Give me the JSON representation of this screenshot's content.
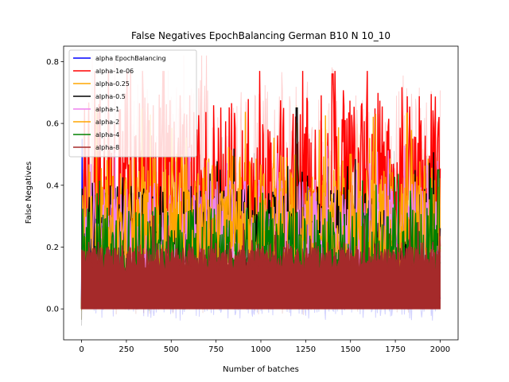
{
  "chart_data": {
    "type": "line",
    "title": "False Negatives EpochBalancing German B10 N 10_10",
    "xlabel": "Number of batches",
    "ylabel": "False Negatives",
    "xlim": [
      -100,
      2100
    ],
    "ylim": [
      -0.1,
      0.85
    ],
    "xticks": [
      0,
      250,
      500,
      750,
      1000,
      1250,
      1500,
      1750,
      2000
    ],
    "yticks": [
      0.0,
      0.2,
      0.4,
      0.6,
      0.8
    ],
    "xtick_labels": [
      "0",
      "250",
      "500",
      "750",
      "1000",
      "1250",
      "1500",
      "1750",
      "2000"
    ],
    "ytick_labels": [
      "0.0",
      "0.2",
      "0.4",
      "0.6",
      "0.8"
    ],
    "legend_position": "top-left",
    "x_range": [
      0,
      2000
    ],
    "series": [
      {
        "name": "alpha EpochBalancing",
        "color": "#0000ff",
        "base": 0.02,
        "amp": 0.05,
        "peak": 0.55,
        "peak_x": 0
      },
      {
        "name": "alpha-1e-06",
        "color": "#ff0000",
        "base": 0.2,
        "amp": 0.5,
        "peak": 0.76,
        "peak_x": 1400
      },
      {
        "name": "alpha-0.25",
        "color": "#ffa500",
        "base": 0.12,
        "amp": 0.38,
        "peak": 0.6,
        "peak_x": 1200
      },
      {
        "name": "alpha-0.5",
        "color": "#000000",
        "base": 0.1,
        "amp": 0.3,
        "peak": 0.65,
        "peak_x": 1200
      },
      {
        "name": "alpha-1",
        "color": "#ee82ee",
        "base": 0.1,
        "amp": 0.32,
        "peak": 0.52,
        "peak_x": 600
      },
      {
        "name": "alpha-2",
        "color": "#ffa500",
        "base": 0.1,
        "amp": 0.3,
        "peak": 0.5,
        "peak_x": 1500
      },
      {
        "name": "alpha-4",
        "color": "#008000",
        "base": 0.05,
        "amp": 0.28,
        "peak": 0.45,
        "peak_x": 1990
      },
      {
        "name": "alpha-8",
        "color": "#a52a2a",
        "base": 0.04,
        "amp": 0.18,
        "peak": 0.3,
        "peak_x": 400
      }
    ],
    "grid": false
  }
}
